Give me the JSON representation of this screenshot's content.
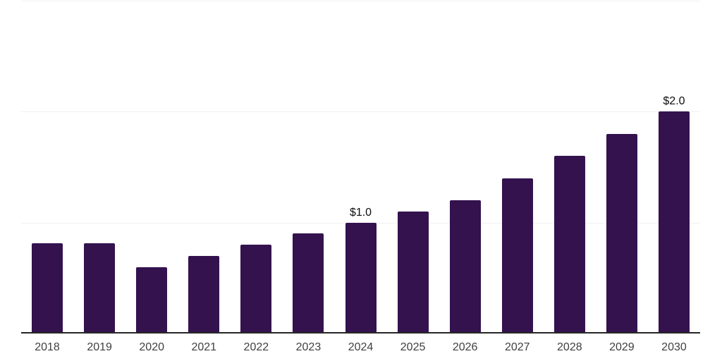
{
  "chart_data": {
    "type": "bar",
    "categories": [
      "2018",
      "2019",
      "2020",
      "2021",
      "2022",
      "2023",
      "2024",
      "2025",
      "2026",
      "2027",
      "2028",
      "2029",
      "2030"
    ],
    "values": [
      0.81,
      0.81,
      0.6,
      0.7,
      0.8,
      0.9,
      1.0,
      1.1,
      1.2,
      1.4,
      1.6,
      1.8,
      2.0
    ],
    "data_labels": [
      "",
      "",
      "",
      "",
      "",
      "",
      "$1.0",
      "",
      "",
      "",
      "",
      "",
      "$2.0"
    ],
    "title": "",
    "xlabel": "",
    "ylabel": "",
    "ylim": [
      0,
      3.0
    ],
    "gridline_values": [
      1.0,
      2.0,
      3.0
    ],
    "grid": true,
    "legend": false,
    "colors": {
      "bar": "#34124e",
      "gridline": "#f1f1f1",
      "axis_line": "#262626",
      "tick_label": "#404040",
      "data_label": "#0d0d0d"
    }
  }
}
